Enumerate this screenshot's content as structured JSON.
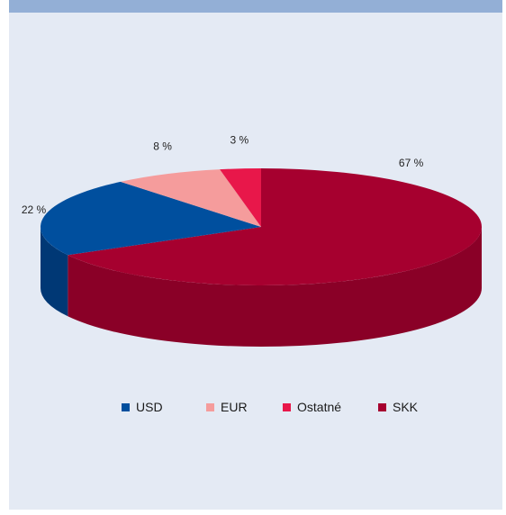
{
  "chart_data": {
    "type": "pie",
    "style": "3d",
    "title": "",
    "legend_position": "bottom",
    "slices": [
      {
        "label": "USD",
        "value": 22,
        "value_label": "22 %",
        "color": "#004f9e",
        "side_color": "#003875"
      },
      {
        "label": "EUR",
        "value": 8,
        "value_label": "8 %",
        "color": "#f59c9c",
        "side_color": "#c97c7c"
      },
      {
        "label": "Ostatné",
        "value": 3,
        "value_label": "3 %",
        "color": "#e8174a",
        "side_color": "#b01038"
      },
      {
        "label": "SKK",
        "value": 67,
        "value_label": "67 %",
        "color": "#a6002f",
        "side_color": "#8a0027"
      }
    ]
  },
  "colors": {
    "background": "#e4eaf4",
    "top_band": "#93afd6"
  }
}
